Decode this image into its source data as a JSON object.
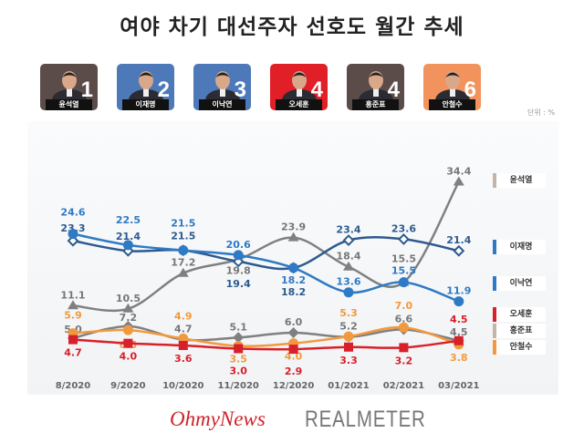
{
  "title": "여야 차기 대선주자 선호도 월간 추세",
  "unit": "단위 : %",
  "cards": [
    {
      "name": "윤석열",
      "rank": "1",
      "color": "#5b4b49"
    },
    {
      "name": "이재명",
      "rank": "2",
      "color": "#4d79b9"
    },
    {
      "name": "이낙연",
      "rank": "3",
      "color": "#4d79b9"
    },
    {
      "name": "오세훈",
      "rank": "4",
      "color": "#e01f26"
    },
    {
      "name": "홍준표",
      "rank": "4",
      "color": "#5b4b49"
    },
    {
      "name": "안철수",
      "rank": "6",
      "color": "#f2935e"
    }
  ],
  "footer": {
    "logo1": "OhmyNews",
    "logo2": "REALMETER"
  },
  "chart_data": {
    "type": "line",
    "categories": [
      "8/2020",
      "9/2020",
      "10/2020",
      "11/2020",
      "12/2020",
      "01/2021",
      "02/2021",
      "03/2021"
    ],
    "ylim": [
      0,
      36
    ],
    "grid": false,
    "legend": "right",
    "series": [
      {
        "name": "윤석열",
        "color": "#808080",
        "legend_color": "#c4b5a8",
        "marker": "triangle",
        "values": [
          11.1,
          10.5,
          17.2,
          19.8,
          23.9,
          18.4,
          15.5,
          34.4
        ]
      },
      {
        "name": "이재명",
        "color": "#2d5a8e",
        "legend_color": "#2f7ac4",
        "marker": "open-diamond",
        "values": [
          23.3,
          21.4,
          21.5,
          19.4,
          18.2,
          23.4,
          23.6,
          21.4
        ]
      },
      {
        "name": "이낙연",
        "color": "#2f7ac4",
        "legend_color": "#2f7ac4",
        "marker": "circle",
        "values": [
          24.6,
          22.5,
          21.5,
          20.6,
          18.2,
          13.6,
          15.5,
          11.9
        ]
      },
      {
        "name": "오세훈",
        "color": "#d8202a",
        "legend_color": "#d8202a",
        "marker": "square",
        "values": [
          4.7,
          4.0,
          3.6,
          3.0,
          2.9,
          3.3,
          3.2,
          4.5
        ]
      },
      {
        "name": "홍준표",
        "color": "#808080",
        "legend_color": "#c4b5a8",
        "marker": "diamond",
        "values": [
          5.0,
          7.2,
          4.7,
          5.1,
          6.0,
          5.2,
          6.6,
          4.5
        ]
      },
      {
        "name": "안철수",
        "color": "#f2993f",
        "legend_color": "#f2993f",
        "marker": "circle",
        "values": [
          5.9,
          6.5,
          4.9,
          3.5,
          4.0,
          5.3,
          7.0,
          3.8
        ]
      }
    ]
  }
}
